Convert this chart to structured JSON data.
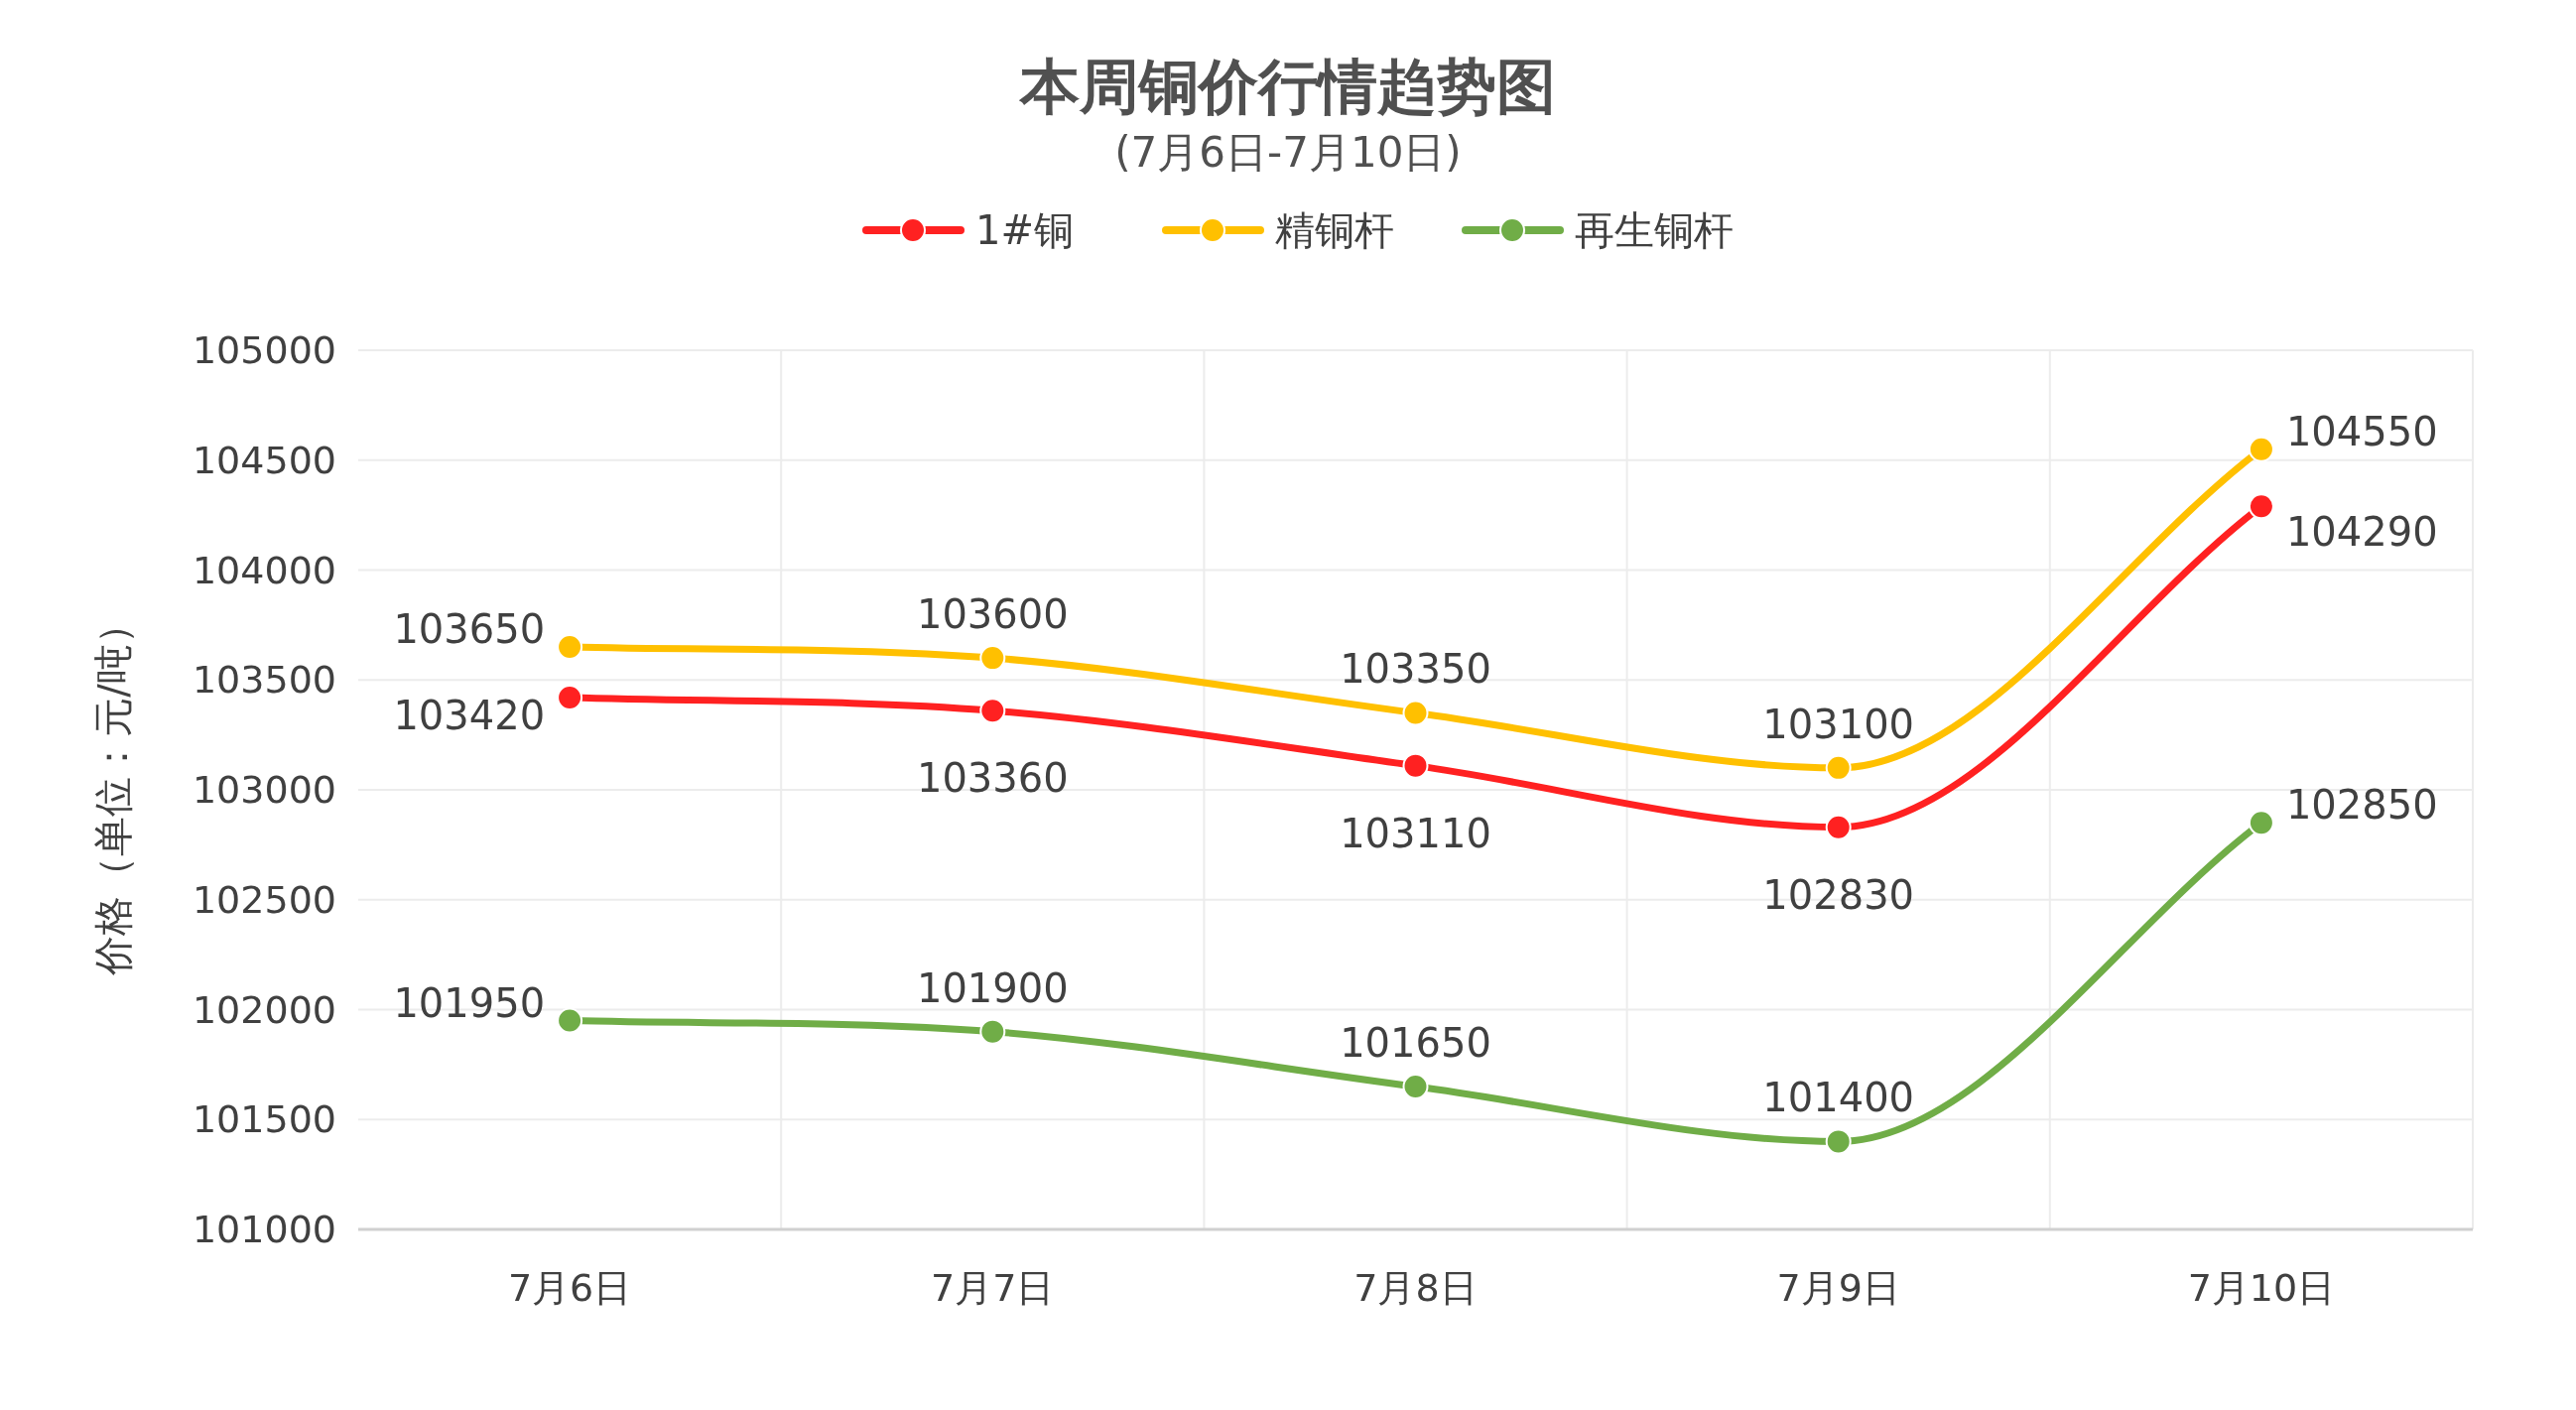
{
  "chart_data": {
    "type": "line",
    "title": "本周铜价行情趋势图",
    "subtitle": "(7月6日-7月10日)",
    "ylabel": "价格（单位：元/吨）",
    "categories": [
      "7月6日",
      "7月7日",
      "7月8日",
      "7月9日",
      "7月10日"
    ],
    "series": [
      {
        "name": "1#铜",
        "color": "#ff2121",
        "values": [
          103420,
          103360,
          103110,
          102830,
          104290
        ]
      },
      {
        "name": "精铜杆",
        "color": "#ffc000",
        "values": [
          103650,
          103600,
          103350,
          103100,
          104550
        ]
      },
      {
        "name": "再生铜杆",
        "color": "#70ad47",
        "values": [
          101950,
          101900,
          101650,
          101400,
          102850
        ]
      }
    ],
    "ylim": [
      101000,
      105000
    ],
    "yticks": [
      101000,
      101500,
      102000,
      102500,
      103000,
      103500,
      104000,
      104500,
      105000
    ],
    "grid": true,
    "legend": "top",
    "marker": "circle",
    "line_style": "solid",
    "data_labels": true
  }
}
